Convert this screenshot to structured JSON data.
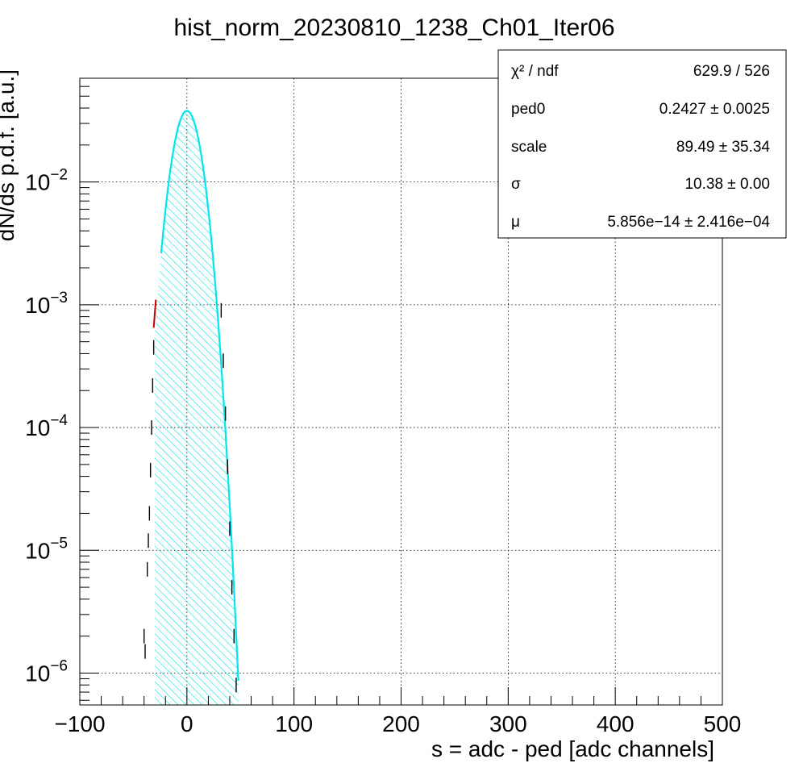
{
  "chart_data": {
    "type": "histogram",
    "title": "hist_norm_20230810_1238_Ch01_Iter06",
    "xlabel": "s = adc - ped [adc channels]",
    "ylabel": "dN/ds p.d.f. [a.u.]",
    "xlim": [
      -100,
      500
    ],
    "ylim": [
      5.5e-07,
      0.07
    ],
    "y_scale": "log",
    "grid": true,
    "x_ticks": [
      -100,
      0,
      100,
      200,
      300,
      400,
      500
    ],
    "x_tick_labels": [
      "−100",
      "0",
      "100",
      "200",
      "300",
      "400",
      "500"
    ],
    "y_ticks": [
      {
        "value": 1e-06,
        "base": "10",
        "exp": "−6"
      },
      {
        "value": 1e-05,
        "base": "10",
        "exp": "−5"
      },
      {
        "value": 0.0001,
        "base": "10",
        "exp": "−4"
      },
      {
        "value": 0.001,
        "base": "10",
        "exp": "−3"
      },
      {
        "value": 0.01,
        "base": "10",
        "exp": "−2"
      }
    ],
    "series": [
      {
        "kind": "fit_gaussian",
        "color": "#00e5ee",
        "peak": 0.038,
        "mean": 0.0,
        "sigma": 10.38,
        "fill_range": [
          -30,
          48
        ],
        "fill_hatch": true
      },
      {
        "kind": "fit_segment",
        "color": "#cc0000",
        "x": [
          -31,
          -29
        ],
        "y": [
          0.00065,
          0.0011
        ]
      },
      {
        "kind": "data_points",
        "color": "#000000",
        "x": [
          -40,
          -39,
          -37,
          -36,
          -35,
          -34,
          -33,
          -32,
          -31,
          32,
          34,
          36,
          38,
          40,
          42,
          44,
          46
        ],
        "y": [
          2e-06,
          1.5e-06,
          7e-06,
          1.2e-05,
          2e-05,
          4.5e-05,
          0.0001,
          0.00022,
          0.00045,
          0.0009,
          0.00035,
          0.00013,
          4.8e-05,
          1.5e-05,
          5e-06,
          2e-06,
          8e-07
        ]
      }
    ],
    "stats_box": {
      "rows": [
        {
          "label": "χ² / ndf",
          "value": "629.9 / 526"
        },
        {
          "label": "ped0",
          "value": "0.2427 ± 0.0025"
        },
        {
          "label": "scale",
          "value": "89.49 ± 35.34"
        },
        {
          "label": "σ",
          "value": "10.38 ± 0.00"
        },
        {
          "label": "μ",
          "value": "5.856e−14 ± 2.416e−04"
        }
      ]
    }
  }
}
